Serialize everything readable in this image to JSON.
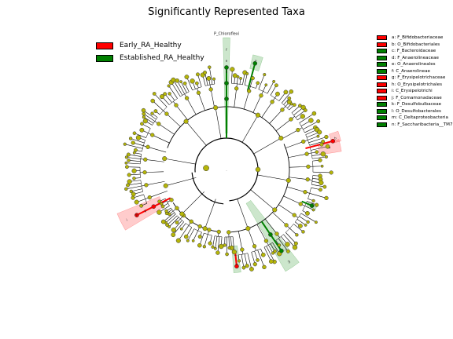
{
  "title": "Significantly Represented Taxa",
  "colors": {
    "early": "#ff0000",
    "established": "#008000",
    "node_default": "#b5b509",
    "node_default_edge": "#6e6e00",
    "edge": "#000000"
  },
  "legend": [
    {
      "label": "Early_RA_Healthy",
      "color": "#ff0000"
    },
    {
      "label": "Established_RA_Healthy",
      "color": "#008000"
    }
  ],
  "taxa_key": [
    {
      "label": "a: F_Bifidobacteriaceae",
      "color": "#ff0000"
    },
    {
      "label": "b: O_Bifidobacteriales",
      "color": "#ff0000"
    },
    {
      "label": "c: F_Bacteroidaceae",
      "color": "#008000"
    },
    {
      "label": "d: F_Anaerolineaceae",
      "color": "#008000"
    },
    {
      "label": "e: O_Anaerolineales",
      "color": "#008000"
    },
    {
      "label": "f: C_Anaerolineae",
      "color": "#008000"
    },
    {
      "label": "g: F_Erysipelotrichaceae",
      "color": "#ff0000"
    },
    {
      "label": "h: O_Erysipelotrichales",
      "color": "#ff0000"
    },
    {
      "label": "i: C_Erysipelotrichi",
      "color": "#ff0000"
    },
    {
      "label": "j: F_Comamonadaceae",
      "color": "#ff0000"
    },
    {
      "label": "k: F_Desulfobulbaceae",
      "color": "#008000"
    },
    {
      "label": "l: O_Desulfobacterales",
      "color": "#008000"
    },
    {
      "label": "m: C_Deltaproteobacteria",
      "color": "#008000"
    },
    {
      "label": "n: F_Saccharibacteria__TM7",
      "color": "#008000"
    }
  ],
  "highlights": [
    {
      "label": "P_Chloroflexi",
      "color": "#008000"
    },
    {
      "label": "f",
      "color": "#008000"
    },
    {
      "label": "e",
      "color": "#008000"
    },
    {
      "label": "d",
      "color": "#008000"
    },
    {
      "label": "c",
      "color": "#008000"
    },
    {
      "label": "b",
      "color": "#ff0000"
    },
    {
      "label": "a",
      "color": "#ff0000"
    },
    {
      "label": "n",
      "color": "#008000"
    },
    {
      "label": "m",
      "color": "#008000"
    },
    {
      "label": "l",
      "color": "#008000"
    },
    {
      "label": "k",
      "color": "#008000"
    },
    {
      "label": "j",
      "color": "#ff0000"
    },
    {
      "label": "i",
      "color": "#ff0000"
    },
    {
      "label": "h",
      "color": "#ff0000"
    },
    {
      "label": "g",
      "color": "#ff0000"
    }
  ],
  "center_label": "."
}
